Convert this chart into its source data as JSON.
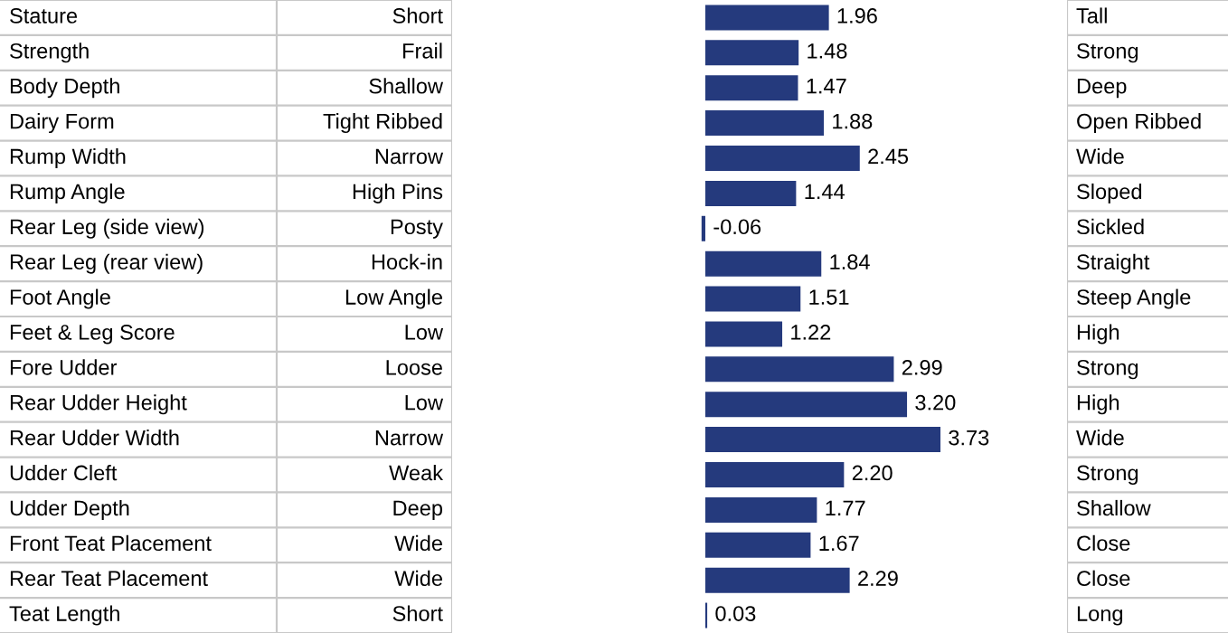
{
  "chart_data": {
    "type": "bar",
    "orientation": "horizontal",
    "categories": [
      "Stature",
      "Strength",
      "Body Depth",
      "Dairy Form",
      "Rump Width",
      "Rump Angle",
      "Rear Leg (side view)",
      "Rear Leg (rear view)",
      "Foot Angle",
      "Feet & Leg Score",
      "Fore Udder",
      "Rear Udder Height",
      "Rear Udder Width",
      "Udder Cleft",
      "Udder Depth",
      "Front Teat Placement",
      "Rear Teat Placement",
      "Teat Length"
    ],
    "values": [
      1.96,
      1.48,
      1.47,
      1.88,
      2.45,
      1.44,
      -0.06,
      1.84,
      1.51,
      1.22,
      2.99,
      3.2,
      3.73,
      2.2,
      1.77,
      1.67,
      2.29,
      0.03
    ],
    "color": "#253a7d",
    "value_labels": [
      "1.96",
      "1.48",
      "1.47",
      "1.88",
      "2.45",
      "1.44",
      "-0.06",
      "1.84",
      "1.51",
      "1.22",
      "2.99",
      "3.20",
      "3.73",
      "2.20",
      "1.77",
      "1.67",
      "2.29",
      "0.03"
    ],
    "annotations": [
      "Short",
      "Frail",
      "Shallow",
      "Tight Ribbed",
      "Narrow",
      "High Pins",
      "Posty",
      "Hock-in",
      "Low Angle",
      "Low",
      "Loose",
      "Low",
      "Narrow",
      "Weak",
      "Deep",
      "Wide",
      "Wide",
      "Short",
      "Tall",
      "Strong",
      "Deep",
      "Open Ribbed",
      "Wide",
      "Sloped",
      "Sickled",
      "Straight",
      "Steep Angle",
      "High",
      "Strong",
      "High",
      "Wide",
      "Strong",
      "Shallow",
      "Close",
      "Close",
      "Long"
    ]
  }
}
